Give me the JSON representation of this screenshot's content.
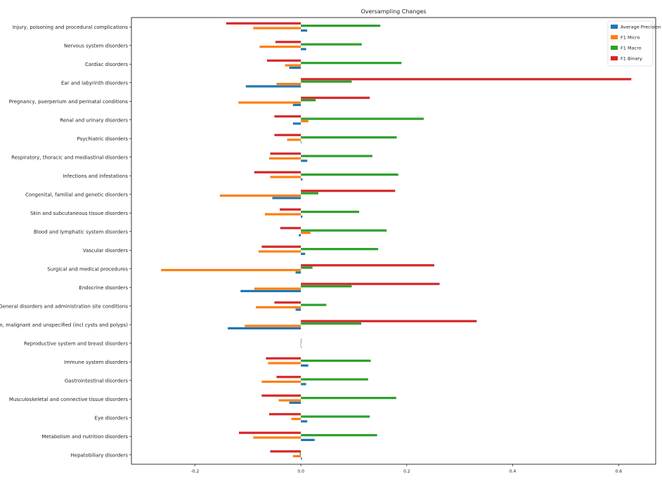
{
  "chart_data": {
    "type": "bar",
    "orientation": "horizontal",
    "title": "Oversampling Changes",
    "xlabel": "",
    "ylabel": "",
    "xlim": [
      -0.32,
      0.67
    ],
    "xticks": [
      -0.2,
      0.0,
      0.2,
      0.4,
      0.6
    ],
    "xtick_labels": [
      "-0.2",
      "0.0",
      "0.2",
      "0.4",
      "0.6"
    ],
    "grid": false,
    "legend_position": "top-right",
    "categories": [
      "Injury, poisoning and procedural complications",
      "Nervous system disorders",
      "Cardiac disorders",
      "Ear and labyrinth disorders",
      "Pregnancy, puerperium and perinatal conditions",
      "Renal and urinary disorders",
      "Psychiatric disorders",
      "Respiratory, thoracic and mediastinal disorders",
      "Infections and infestations",
      "Congenital, familial and genetic disorders",
      "Skin and subcutaneous tissue disorders",
      "Blood and lymphatic system disorders",
      "Vascular disorders",
      "Surgical and medical procedures",
      "Endocrine disorders",
      "General disorders and administration site conditions",
      "Neoplasms benign, malignant and unspecified (incl cysts and polyps)",
      "Reproductive system and breast disorders",
      "Immune system disorders",
      "Gastrointestinal disorders",
      "Musculoskeletal and connective tissue disorders",
      "Eye disorders",
      "Metabolism and nutrition disorders",
      "Hepatobiliary disorders"
    ],
    "series": [
      {
        "name": "Average Precision",
        "color": "#1f77b4",
        "values": [
          0.012,
          0.01,
          -0.022,
          -0.104,
          -0.015,
          -0.015,
          0.001,
          0.012,
          0.003,
          -0.054,
          0.003,
          -0.004,
          0.008,
          -0.01,
          -0.114,
          -0.01,
          -0.138,
          0.0,
          0.014,
          0.01,
          -0.022,
          0.012,
          0.026,
          0.002
        ]
      },
      {
        "name": "F1 Micro",
        "color": "#ff7f0e",
        "values": [
          -0.09,
          -0.078,
          -0.03,
          -0.046,
          -0.118,
          0.014,
          -0.026,
          -0.06,
          -0.058,
          -0.153,
          -0.068,
          0.018,
          -0.08,
          -0.264,
          -0.088,
          -0.085,
          -0.106,
          -0.001,
          -0.062,
          -0.074,
          -0.042,
          -0.018,
          -0.09,
          -0.015
        ]
      },
      {
        "name": "F1 Macro",
        "color": "#2ca02c",
        "values": [
          0.15,
          0.115,
          0.19,
          0.096,
          0.028,
          0.232,
          0.181,
          0.135,
          0.184,
          0.033,
          0.11,
          0.162,
          0.146,
          0.022,
          0.096,
          0.048,
          0.114,
          0.001,
          0.132,
          0.127,
          0.18,
          0.13,
          0.144,
          -0.002
        ]
      },
      {
        "name": "F1 Binary",
        "color": "#d62728",
        "values": [
          -0.141,
          -0.048,
          -0.064,
          0.624,
          0.13,
          -0.05,
          -0.05,
          -0.058,
          -0.088,
          0.178,
          -0.04,
          -0.039,
          -0.074,
          0.252,
          0.262,
          -0.05,
          0.332,
          0.0,
          -0.066,
          -0.046,
          -0.074,
          -0.06,
          -0.117,
          -0.058
        ]
      }
    ]
  }
}
